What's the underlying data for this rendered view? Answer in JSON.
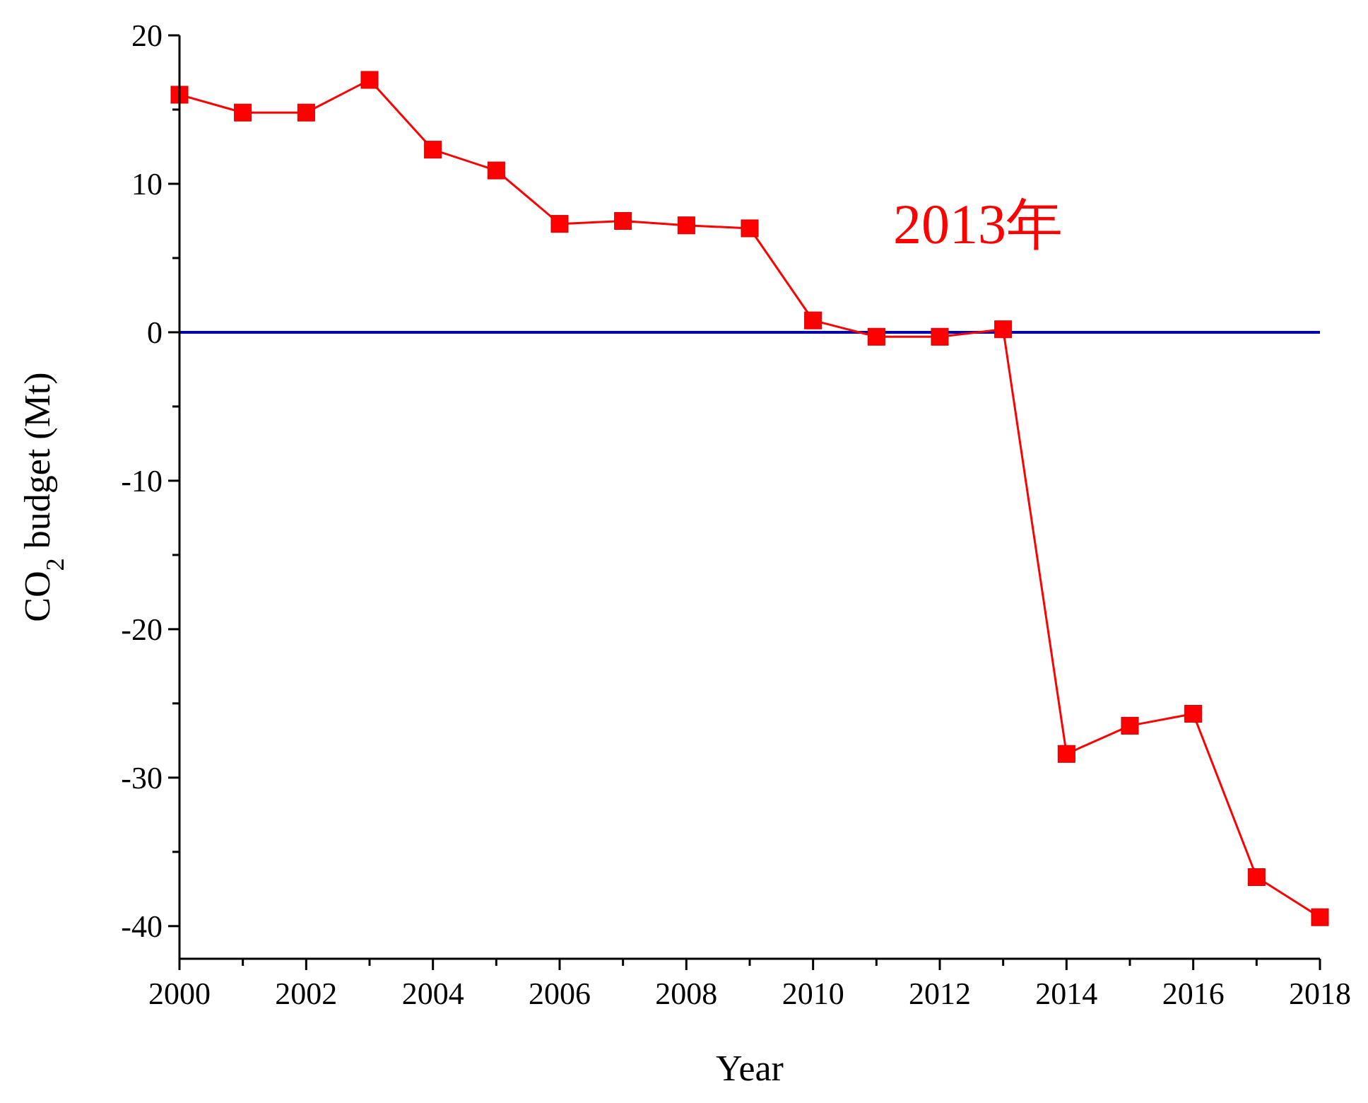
{
  "chart_data": {
    "type": "line",
    "xlabel": "Year",
    "ylabel": "CO$_{2}$ budget (Mt)",
    "x": [
      2000,
      2001,
      2002,
      2003,
      2004,
      2005,
      2006,
      2007,
      2008,
      2009,
      2010,
      2011,
      2012,
      2013,
      2014,
      2015,
      2016,
      2017,
      2018
    ],
    "series": [
      {
        "color": "#ff0000",
        "values": [
          16.0,
          14.8,
          14.8,
          17.0,
          12.3,
          10.9,
          7.3,
          7.5,
          7.2,
          7.0,
          0.8,
          -0.3,
          -0.3,
          0.2,
          -28.4,
          -26.5,
          -25.7,
          -36.7,
          -39.4
        ]
      }
    ],
    "marker": "square",
    "line_style": "solid",
    "grid": false,
    "xlim": [
      2000,
      2018
    ],
    "xticks": [
      2000,
      {
        "value": 2001,
        "label": null
      },
      2002,
      {
        "value": 2003,
        "label": null
      },
      2004,
      {
        "value": 2005,
        "label": null
      },
      2006,
      {
        "value": 2007,
        "label": null
      },
      2008,
      {
        "value": 2009,
        "label": null
      },
      2010,
      {
        "value": 2011,
        "label": null
      },
      2012,
      {
        "value": 2013,
        "label": null
      },
      2014,
      {
        "value": 2015,
        "label": null
      },
      2016,
      {
        "value": 2017,
        "label": null
      },
      2018
    ],
    "ylim": [
      -42.2,
      20
    ],
    "yticks": [
      -40,
      {
        "value": -35,
        "label": null
      },
      -30,
      {
        "value": -25,
        "label": null
      },
      -20,
      {
        "value": -15,
        "label": null
      },
      -10,
      {
        "value": -5,
        "label": null
      },
      0,
      {
        "value": 5,
        "label": null
      },
      10,
      {
        "value": 15,
        "label": null
      },
      20
    ],
    "ref_lines": [
      {
        "axis": "y",
        "value": 0,
        "color": "#0000b0"
      }
    ],
    "annotations": [
      "2013年"
    ]
  }
}
